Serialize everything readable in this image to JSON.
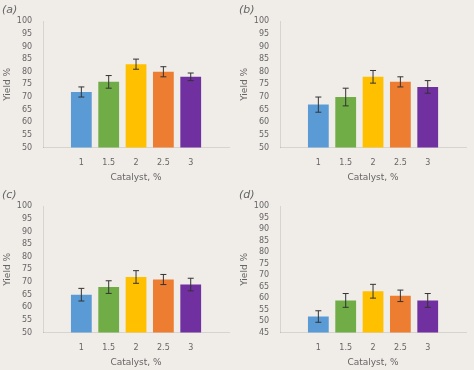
{
  "chart_data": [
    {
      "type": "bar",
      "title": "(a)",
      "categories": [
        1,
        1.5,
        2,
        2.5,
        3
      ],
      "values": [
        72,
        76,
        83,
        80,
        78
      ],
      "errors": [
        2,
        2.5,
        2,
        2,
        1.5
      ],
      "colors": [
        "#5B9BD5",
        "#70AD47",
        "#FFC000",
        "#ED7D31",
        "#7030A0"
      ],
      "x_label": "Catalyst, %",
      "y_label": "Yield %",
      "xlim": [
        0.3,
        3.7
      ],
      "xticks": [
        1,
        1.5,
        2,
        2.5,
        3
      ],
      "ylim": [
        50,
        100
      ],
      "yticks": [
        50,
        55,
        60,
        65,
        70,
        75,
        80,
        85,
        90,
        95,
        100
      ],
      "grid": false
    },
    {
      "type": "bar",
      "title": "(b)",
      "categories": [
        1,
        1.5,
        2,
        2.5,
        3
      ],
      "values": [
        67,
        70,
        78,
        76,
        74
      ],
      "errors": [
        3,
        3.5,
        2.5,
        2,
        2.5
      ],
      "colors": [
        "#5B9BD5",
        "#70AD47",
        "#FFC000",
        "#ED7D31",
        "#7030A0"
      ],
      "x_label": "Catalyst, %",
      "y_label": "Yield %",
      "xlim": [
        0.3,
        3.7
      ],
      "xticks": [
        1,
        1.5,
        2,
        2.5,
        3
      ],
      "ylim": [
        50,
        100
      ],
      "yticks": [
        50,
        55,
        60,
        65,
        70,
        75,
        80,
        85,
        90,
        95,
        100
      ],
      "grid": false
    },
    {
      "type": "bar",
      "title": "(c)",
      "categories": [
        1,
        1.5,
        2,
        2.5,
        3
      ],
      "values": [
        65,
        68,
        72,
        71,
        69
      ],
      "errors": [
        2.5,
        2.5,
        2.5,
        2,
        2.5
      ],
      "colors": [
        "#5B9BD5",
        "#70AD47",
        "#FFC000",
        "#ED7D31",
        "#7030A0"
      ],
      "x_label": "Catalyst, %",
      "y_label": "Yield %",
      "xlim": [
        0.3,
        3.7
      ],
      "xticks": [
        1,
        1.5,
        2,
        2.5,
        3
      ],
      "ylim": [
        50,
        100
      ],
      "yticks": [
        50,
        55,
        60,
        65,
        70,
        75,
        80,
        85,
        90,
        95,
        100
      ],
      "grid": false
    },
    {
      "type": "bar",
      "title": "(d)",
      "categories": [
        1,
        1.5,
        2,
        2.5,
        3
      ],
      "values": [
        52,
        59,
        63,
        61,
        59
      ],
      "errors": [
        2.5,
        3,
        3,
        2.5,
        3
      ],
      "colors": [
        "#5B9BD5",
        "#70AD47",
        "#FFC000",
        "#ED7D31",
        "#7030A0"
      ],
      "x_label": "Catalyst, %",
      "y_label": "Yield %",
      "xlim": [
        0.3,
        3.7
      ],
      "xticks": [
        1,
        1.5,
        2,
        2.5,
        3
      ],
      "ylim": [
        45,
        100
      ],
      "yticks": [
        45,
        50,
        55,
        60,
        65,
        70,
        75,
        80,
        85,
        90,
        95,
        100
      ],
      "grid": false
    }
  ]
}
